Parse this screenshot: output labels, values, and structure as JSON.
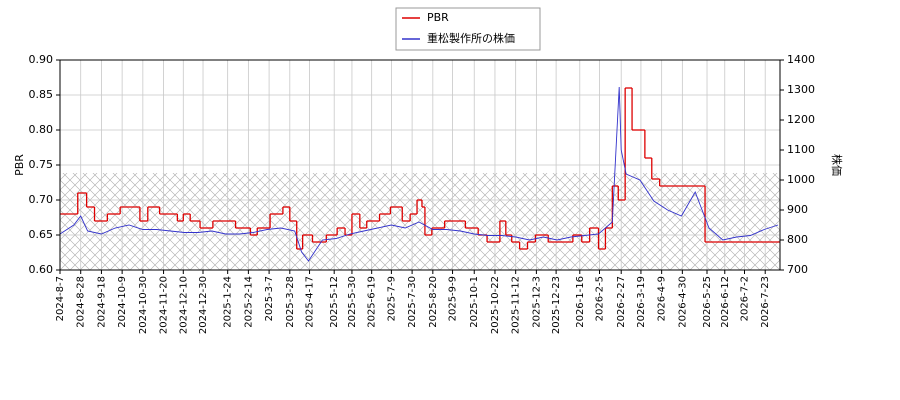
{
  "chart_data": {
    "type": "line",
    "xlim": [
      "2024-08-07",
      "2026-08-07"
    ],
    "xticks": [
      {
        "value": "2024-08-07",
        "label": "2024-8-7"
      },
      {
        "value": "2024-08-28",
        "label": "2024-8-28"
      },
      {
        "value": "2024-09-18",
        "label": "2024-9-18"
      },
      {
        "value": "2024-10-09",
        "label": "2024-10-9"
      },
      {
        "value": "2024-10-30",
        "label": "2024-10-30"
      },
      {
        "value": "2024-11-20",
        "label": "2024-11-20"
      },
      {
        "value": "2024-12-10",
        "label": "2024-12-10"
      },
      {
        "value": "2024-12-30",
        "label": "2024-12-30"
      },
      {
        "value": "2025-01-24",
        "label": "2025-1-24"
      },
      {
        "value": "2025-02-14",
        "label": "2025-2-14"
      },
      {
        "value": "2025-03-07",
        "label": "2025-3-7"
      },
      {
        "value": "2025-03-28",
        "label": "2025-3-28"
      },
      {
        "value": "2025-04-17",
        "label": "2025-4-17"
      },
      {
        "value": "2025-05-12",
        "label": "2025-5-12"
      },
      {
        "value": "2025-05-30",
        "label": "2025-5-30"
      },
      {
        "value": "2025-06-19",
        "label": "2025-6-19"
      },
      {
        "value": "2025-07-09",
        "label": "2025-7-9"
      },
      {
        "value": "2025-07-30",
        "label": "2025-7-30"
      },
      {
        "value": "2025-08-20",
        "label": "2025-8-20"
      },
      {
        "value": "2025-09-09",
        "label": "2025-9-9"
      },
      {
        "value": "2025-10-01",
        "label": "2025-10-1"
      },
      {
        "value": "2025-10-22",
        "label": "2025-10-22"
      },
      {
        "value": "2025-11-12",
        "label": "2025-11-12"
      },
      {
        "value": "2025-12-03",
        "label": "2025-12-3"
      },
      {
        "value": "2025-12-23",
        "label": "2025-12-23"
      },
      {
        "value": "2026-01-16",
        "label": "2026-1-16"
      },
      {
        "value": "2026-02-05",
        "label": "2026-2-5"
      },
      {
        "value": "2026-02-27",
        "label": "2026-2-27"
      },
      {
        "value": "2026-03-19",
        "label": "2026-3-19"
      },
      {
        "value": "2026-04-09",
        "label": "2026-4-9"
      },
      {
        "value": "2026-04-30",
        "label": "2026-4-30"
      },
      {
        "value": "2026-05-25",
        "label": "2026-5-25"
      },
      {
        "value": "2026-06-12",
        "label": "2026-6-12"
      },
      {
        "value": "2026-07-02",
        "label": "2026-7-2"
      },
      {
        "value": "2026-07-23",
        "label": "2026-7-23"
      }
    ],
    "ylabel": "PBR",
    "ylim": [
      0.6,
      0.9
    ],
    "yticks": [
      {
        "value": 0.6,
        "label": "0.60"
      },
      {
        "value": 0.65,
        "label": "0.65"
      },
      {
        "value": 0.7,
        "label": "0.70"
      },
      {
        "value": 0.75,
        "label": "0.75"
      },
      {
        "value": 0.8,
        "label": "0.80"
      },
      {
        "value": 0.85,
        "label": "0.85"
      },
      {
        "value": 0.9,
        "label": "0.90"
      }
    ],
    "y2label": "株価",
    "y2lim": [
      700,
      1400
    ],
    "y2ticks": [
      700,
      800,
      900,
      1000,
      1100,
      1200,
      1300,
      1400
    ],
    "grid": true,
    "legend": "top",
    "series": [
      {
        "name": "PBR",
        "color": "#dd0000",
        "step": true,
        "x": [
          "2024-08-07",
          "2024-08-25",
          "2024-09-03",
          "2024-09-11",
          "2024-09-24",
          "2024-10-07",
          "2024-10-27",
          "2024-11-04",
          "2024-11-16",
          "2024-12-04",
          "2024-12-10",
          "2024-12-17",
          "2024-12-27",
          "2025-01-09",
          "2025-02-01",
          "2025-02-16",
          "2025-02-23",
          "2025-03-08",
          "2025-03-21",
          "2025-03-28",
          "2025-04-04",
          "2025-04-10",
          "2025-04-20",
          "2025-05-04",
          "2025-05-15",
          "2025-05-23",
          "2025-05-30",
          "2025-06-07",
          "2025-06-14",
          "2025-06-27",
          "2025-07-08",
          "2025-07-20",
          "2025-07-28",
          "2025-08-04",
          "2025-08-09",
          "2025-08-12",
          "2025-08-19",
          "2025-09-01",
          "2025-09-22",
          "2025-10-05",
          "2025-10-14",
          "2025-10-27",
          "2025-11-02",
          "2025-11-08",
          "2025-11-16",
          "2025-11-24",
          "2025-12-02",
          "2025-12-15",
          "2026-01-09",
          "2026-01-18",
          "2026-01-26",
          "2026-02-04",
          "2026-02-11",
          "2026-02-18",
          "2026-02-24",
          "2026-03-03",
          "2026-03-10",
          "2026-03-23",
          "2026-03-30",
          "2026-04-07",
          "2026-05-23"
        ],
        "values": [
          0.68,
          0.71,
          0.69,
          0.67,
          0.68,
          0.69,
          0.67,
          0.69,
          0.68,
          0.67,
          0.68,
          0.67,
          0.66,
          0.67,
          0.66,
          0.65,
          0.66,
          0.68,
          0.69,
          0.67,
          0.63,
          0.65,
          0.64,
          0.65,
          0.66,
          0.65,
          0.68,
          0.66,
          0.67,
          0.68,
          0.69,
          0.67,
          0.68,
          0.7,
          0.69,
          0.65,
          0.66,
          0.67,
          0.66,
          0.65,
          0.64,
          0.67,
          0.65,
          0.64,
          0.63,
          0.64,
          0.65,
          0.64,
          0.65,
          0.64,
          0.66,
          0.63,
          0.66,
          0.72,
          0.7,
          0.86,
          0.8,
          0.76,
          0.73,
          0.72,
          0.64
        ]
      },
      {
        "name": "重松製作所の株価",
        "color": "#3333cc",
        "axis": "y2",
        "x": [
          "2024-08-07",
          "2024-08-21",
          "2024-08-28",
          "2024-09-04",
          "2024-09-18",
          "2024-10-02",
          "2024-10-16",
          "2024-10-30",
          "2024-11-13",
          "2024-11-27",
          "2024-12-11",
          "2024-12-25",
          "2025-01-08",
          "2025-01-22",
          "2025-02-05",
          "2025-02-19",
          "2025-03-05",
          "2025-03-19",
          "2025-04-02",
          "2025-04-09",
          "2025-04-16",
          "2025-04-30",
          "2025-05-14",
          "2025-05-28",
          "2025-06-11",
          "2025-06-25",
          "2025-07-09",
          "2025-07-23",
          "2025-08-06",
          "2025-08-20",
          "2025-09-03",
          "2025-09-17",
          "2025-10-01",
          "2025-10-15",
          "2025-10-29",
          "2025-11-12",
          "2025-11-26",
          "2025-12-10",
          "2025-12-24",
          "2026-01-07",
          "2026-01-21",
          "2026-02-04",
          "2026-02-18",
          "2026-02-25",
          "2026-02-27",
          "2026-03-04",
          "2026-03-18",
          "2026-04-01",
          "2026-04-15",
          "2026-04-29",
          "2026-05-13",
          "2026-05-27",
          "2026-06-10",
          "2026-06-24",
          "2026-07-08",
          "2026-07-22",
          "2026-08-05"
        ],
        "values": [
          820,
          850,
          880,
          830,
          820,
          840,
          850,
          835,
          835,
          830,
          825,
          825,
          830,
          820,
          820,
          825,
          835,
          840,
          830,
          760,
          730,
          800,
          805,
          820,
          830,
          840,
          850,
          840,
          860,
          835,
          835,
          830,
          820,
          815,
          815,
          810,
          800,
          810,
          800,
          810,
          815,
          820,
          860,
          1310,
          1100,
          1020,
          1000,
          930,
          900,
          880,
          960,
          840,
          800,
          810,
          815,
          835,
          850
        ]
      }
    ]
  }
}
